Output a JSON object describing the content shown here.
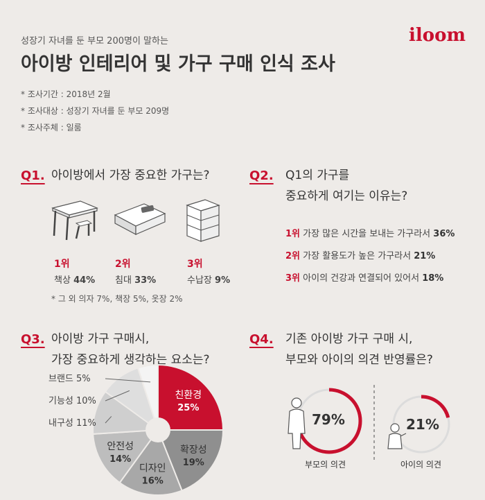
{
  "header": {
    "subtitle": "성장기 자녀를 둔 부모 200명이 말하는",
    "title": "아이방 인테리어 및 가구 구매 인식 조사",
    "logo": "iloom",
    "info": [
      "* 조사기간 : 2018년 2월",
      "* 조사대상 : 성장기 자녀를 둔 부모 209명",
      "* 조사주체 : 일룸"
    ]
  },
  "q1": {
    "num": "Q1.",
    "text": "아이방에서 가장 중요한 가구는?",
    "items": [
      {
        "rank": "1위",
        "label": "책상",
        "pct": "44%",
        "icon": "desk-chair-icon"
      },
      {
        "rank": "2위",
        "label": "침대",
        "pct": "33%",
        "icon": "bed-icon"
      },
      {
        "rank": "3위",
        "label": "수납장",
        "pct": "9%",
        "icon": "storage-cabinet-icon"
      }
    ],
    "note": "* 그 외 의자 7%, 책장 5%, 옷장 2%"
  },
  "q2": {
    "num": "Q2.",
    "line1": "Q1의 가구를",
    "line2": "중요하게 여기는 이유는?",
    "reasons": [
      {
        "rank": "1위",
        "text": "가장 많은 시간을 보내는 가구라서",
        "pct": "36%"
      },
      {
        "rank": "2위",
        "text": "가장 활용도가 높은 가구라서",
        "pct": "21%"
      },
      {
        "rank": "3위",
        "text": "아이의 건강과 연결되어 있어서",
        "pct": "18%"
      }
    ]
  },
  "q3": {
    "num": "Q3.",
    "line1": "아이방 가구 구매시,",
    "line2": "가장 중요하게 생각하는 요소는?"
  },
  "q4": {
    "num": "Q4.",
    "line1": "기존 아이방 가구 구매 시,",
    "line2": "부모와 아이의 의견 반영률은?",
    "parent": {
      "pct": "79%",
      "value": 79,
      "label": "부모의 의견"
    },
    "child": {
      "pct": "21%",
      "value": 21,
      "label": "아이의 의견"
    }
  },
  "chart_data": {
    "type": "pie",
    "categories": [
      "친환경",
      "확장성",
      "디자인",
      "안전성",
      "내구성",
      "기능성",
      "브랜드"
    ],
    "values": [
      25,
      19,
      16,
      14,
      11,
      10,
      5
    ],
    "labels": [
      "25%",
      "19%",
      "16%",
      "14%",
      "11%",
      "10%",
      "5%"
    ],
    "colors": [
      "#c8102e",
      "#8f8f8f",
      "#a8a8a8",
      "#bdbdbd",
      "#cfcfcf",
      "#dedede",
      "#f4f4f4"
    ]
  }
}
